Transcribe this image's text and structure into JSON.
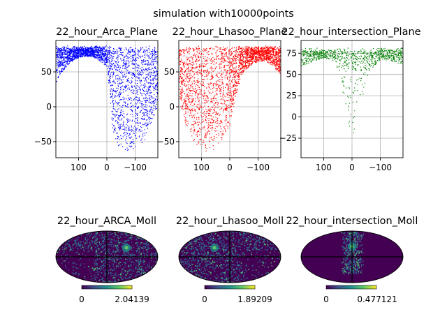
{
  "suptitle": "simulation with10000points",
  "colors": {
    "blue": "#0000ff",
    "red": "#ff0000",
    "green": "#008000",
    "moll_background": "#440154"
  },
  "chart_data": [
    {
      "type": "scatter",
      "title": "22_hour_Arca_Plane",
      "color": "#0000ff",
      "xlim": [
        180,
        -180
      ],
      "ylim": [
        -73,
        95
      ],
      "xticks": [
        {
          "value": 100,
          "label": "100"
        },
        {
          "value": 0,
          "label": "0"
        },
        {
          "value": -100,
          "label": "−100"
        }
      ],
      "yticks": [
        {
          "value": 50,
          "label": "50"
        },
        {
          "value": 0,
          "label": "0"
        },
        {
          "value": -50,
          "label": "−50"
        }
      ],
      "grid": true,
      "points": 10000,
      "envelope": [
        [
          180,
          35
        ],
        [
          160,
          50
        ],
        [
          140,
          60
        ],
        [
          120,
          67
        ],
        [
          100,
          71
        ],
        [
          80,
          72
        ],
        [
          60,
          72
        ],
        [
          40,
          70
        ],
        [
          20,
          64
        ],
        [
          0,
          58
        ],
        [
          -20,
          -38
        ],
        [
          -40,
          -55
        ],
        [
          -60,
          -62
        ],
        [
          -80,
          -64
        ],
        [
          -100,
          -62
        ],
        [
          -120,
          -55
        ],
        [
          -140,
          -42
        ],
        [
          -160,
          -18
        ],
        [
          -180,
          0
        ]
      ],
      "ytop": 88
    },
    {
      "type": "scatter",
      "title": "22_hour_Lhasoo_Plane",
      "color": "#ff0000",
      "xlim": [
        180,
        -180
      ],
      "ylim": [
        -73,
        95
      ],
      "xticks": [
        {
          "value": 100,
          "label": "100"
        },
        {
          "value": 0,
          "label": "0"
        },
        {
          "value": -100,
          "label": "−100"
        }
      ],
      "yticks": [
        {
          "value": 50,
          "label": "50"
        },
        {
          "value": 0,
          "label": "0"
        },
        {
          "value": -50,
          "label": "−50"
        }
      ],
      "grid": true,
      "points": 10000,
      "envelope": [
        [
          180,
          10
        ],
        [
          160,
          -20
        ],
        [
          140,
          -42
        ],
        [
          120,
          -55
        ],
        [
          100,
          -61
        ],
        [
          80,
          -64
        ],
        [
          60,
          -62
        ],
        [
          40,
          -56
        ],
        [
          20,
          -45
        ],
        [
          0,
          -25
        ],
        [
          -20,
          15
        ],
        [
          -40,
          45
        ],
        [
          -60,
          55
        ],
        [
          -80,
          62
        ],
        [
          -100,
          65
        ],
        [
          -120,
          66
        ],
        [
          -140,
          62
        ],
        [
          -160,
          55
        ],
        [
          -180,
          45
        ]
      ],
      "ytop": 88
    },
    {
      "type": "scatter",
      "title": "22_hour_intersection_Plane",
      "color": "#008000",
      "xlim": [
        180,
        -180
      ],
      "ylim": [
        -48,
        90
      ],
      "xticks": [
        {
          "value": 100,
          "label": "100"
        },
        {
          "value": 0,
          "label": "0"
        },
        {
          "value": -100,
          "label": "−100"
        }
      ],
      "yticks": [
        {
          "value": 75,
          "label": "75"
        },
        {
          "value": 50,
          "label": "50"
        },
        {
          "value": 25,
          "label": "25"
        },
        {
          "value": 0,
          "label": "0"
        },
        {
          "value": -25,
          "label": "−25"
        }
      ],
      "grid": true,
      "points": 800,
      "envelope": [
        [
          180,
          60
        ],
        [
          140,
          65
        ],
        [
          100,
          70
        ],
        [
          60,
          66
        ],
        [
          40,
          40
        ],
        [
          20,
          0
        ],
        [
          0,
          -30
        ],
        [
          -20,
          -10
        ],
        [
          -40,
          30
        ],
        [
          -60,
          55
        ],
        [
          -100,
          68
        ],
        [
          -140,
          66
        ],
        [
          -180,
          62
        ]
      ],
      "ytop": 82
    }
  ],
  "moll_maps": [
    {
      "title": "22_hour_ARCA_Moll",
      "colorbar_min": "0",
      "colorbar_max": "2.04139",
      "hotspot": "right-center"
    },
    {
      "title": "22_hour_Lhasoo_Moll",
      "colorbar_min": "0",
      "colorbar_max": "1.89209",
      "hotspot": "left-center"
    },
    {
      "title": "22_hour_intersection_Moll",
      "colorbar_min": "0",
      "colorbar_max": "0.477121",
      "hotspot": "center-strip"
    }
  ]
}
